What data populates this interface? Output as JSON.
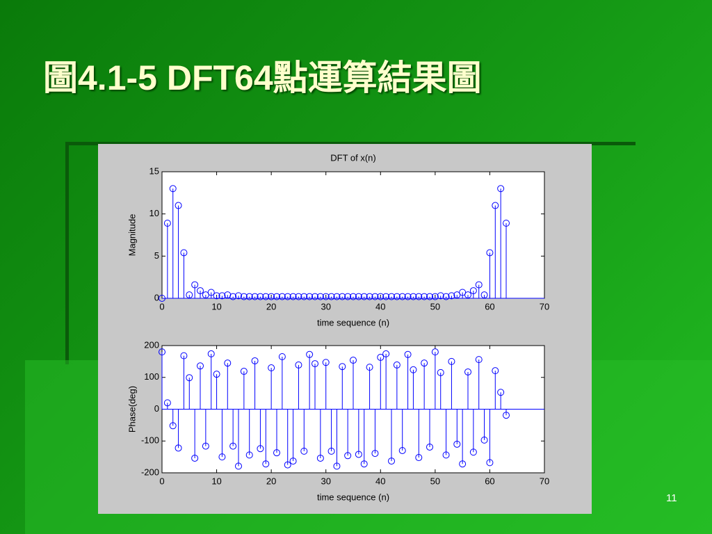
{
  "slide": {
    "title": "圖4.1-5 DFT64點運算結果圖",
    "page_number": "11"
  },
  "chart_data": [
    {
      "type": "stem",
      "title": "DFT of x(n)",
      "xlabel": "time sequence (n)",
      "ylabel": "Magnitude",
      "x": [
        0,
        1,
        2,
        3,
        4,
        5,
        6,
        7,
        8,
        9,
        10,
        11,
        12,
        13,
        14,
        15,
        16,
        17,
        18,
        19,
        20,
        21,
        22,
        23,
        24,
        25,
        26,
        27,
        28,
        29,
        30,
        31,
        32,
        33,
        34,
        35,
        36,
        37,
        38,
        39,
        40,
        41,
        42,
        43,
        44,
        45,
        46,
        47,
        48,
        49,
        50,
        51,
        52,
        53,
        54,
        55,
        56,
        57,
        58,
        59,
        60,
        61,
        62,
        63
      ],
      "values": [
        0,
        8.9,
        13,
        11,
        5.4,
        0.4,
        1.6,
        0.9,
        0.4,
        0.7,
        0.3,
        0.3,
        0.4,
        0.2,
        0.3,
        0.2,
        0.2,
        0.2,
        0.2,
        0.2,
        0.2,
        0.2,
        0.2,
        0.2,
        0.2,
        0.2,
        0.2,
        0.2,
        0.2,
        0.2,
        0.2,
        0.2,
        0.2,
        0.2,
        0.2,
        0.2,
        0.2,
        0.2,
        0.2,
        0.2,
        0.2,
        0.2,
        0.2,
        0.2,
        0.2,
        0.2,
        0.2,
        0.2,
        0.2,
        0.2,
        0.2,
        0.3,
        0.2,
        0.3,
        0.4,
        0.7,
        0.4,
        0.9,
        1.6,
        0.4,
        5.4,
        11,
        13,
        8.9
      ],
      "color": "#0000ff",
      "xlim": [
        0,
        70
      ],
      "xticks": [
        0,
        10,
        20,
        30,
        40,
        50,
        60,
        70
      ],
      "ylim": [
        0,
        15
      ],
      "yticks": [
        0,
        5,
        10,
        15
      ]
    },
    {
      "type": "stem",
      "xlabel": "time sequence (n)",
      "ylabel": "Phase(deg)",
      "x": [
        0,
        1,
        2,
        3,
        4,
        5,
        6,
        7,
        8,
        9,
        10,
        11,
        12,
        13,
        14,
        15,
        16,
        17,
        18,
        19,
        20,
        21,
        22,
        23,
        24,
        25,
        26,
        27,
        28,
        29,
        30,
        31,
        32,
        33,
        34,
        35,
        36,
        37,
        38,
        39,
        40,
        41,
        42,
        43,
        44,
        45,
        46,
        47,
        48,
        49,
        50,
        51,
        52,
        53,
        54,
        55,
        56,
        57,
        58,
        59,
        60,
        61,
        62,
        63
      ],
      "values": [
        180,
        20,
        -52,
        -122,
        168,
        99,
        -154,
        136,
        -116,
        174,
        110,
        -150,
        145,
        -116,
        -179,
        119,
        -144,
        152,
        -124,
        -172,
        130,
        -137,
        165,
        -175,
        -163,
        139,
        -132,
        172,
        143,
        -154,
        147,
        -132,
        -179,
        134,
        -146,
        154,
        -142,
        -172,
        132,
        -139,
        163,
        174,
        -163,
        139,
        -130,
        172,
        124,
        -152,
        145,
        -119,
        180,
        115,
        -144,
        150,
        -110,
        -172,
        117,
        -135,
        156,
        -97,
        -168,
        121,
        53,
        -19
      ],
      "color": "#0000ff",
      "xlim": [
        0,
        70
      ],
      "xticks": [
        0,
        10,
        20,
        30,
        40,
        50,
        60,
        70
      ],
      "ylim": [
        -200,
        200
      ],
      "yticks": [
        -200,
        -100,
        0,
        100,
        200
      ]
    }
  ]
}
